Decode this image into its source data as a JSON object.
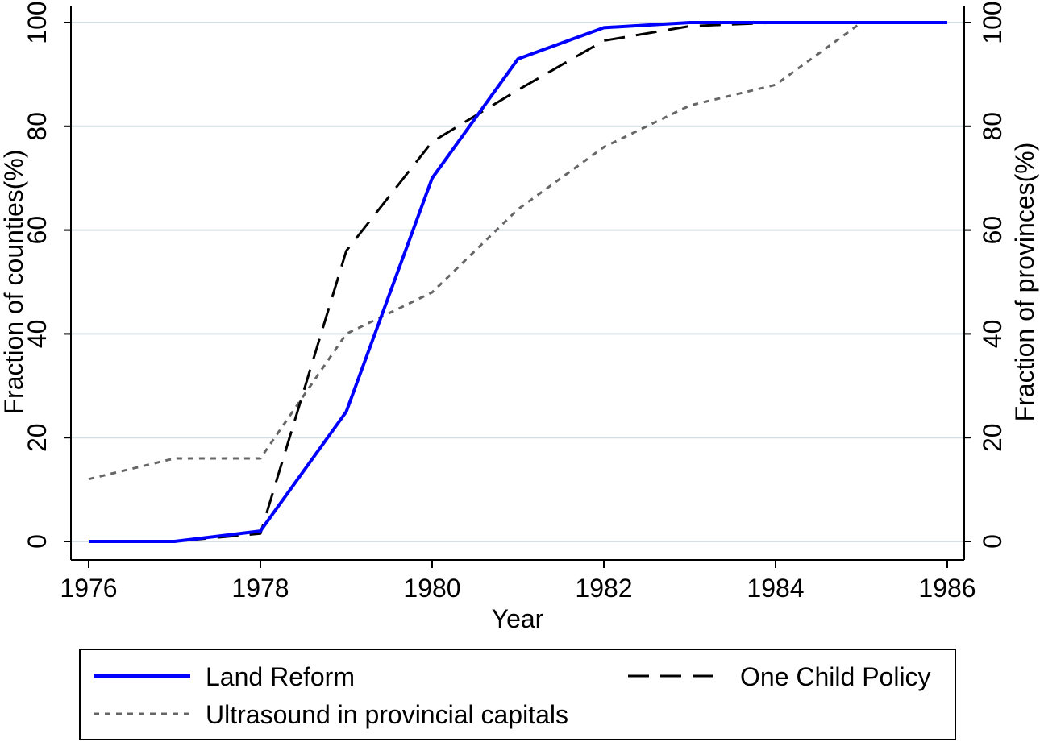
{
  "chart_data": {
    "type": "line",
    "title": "",
    "xlabel": "Year",
    "ylabel_left": "Fraction of counties(%)",
    "ylabel_right": "Fraction of provinces(%)",
    "xlim": [
      1976,
      1986
    ],
    "ylim": [
      0,
      100
    ],
    "x_ticks": [
      "1976",
      "1978",
      "1980",
      "1982",
      "1984",
      "1986"
    ],
    "y_ticks": [
      "0",
      "20",
      "40",
      "60",
      "80",
      "100"
    ],
    "grid": true,
    "legend_position": "bottom",
    "x": [
      1976,
      1977,
      1978,
      1979,
      1980,
      1981,
      1982,
      1983,
      1984,
      1985,
      1986
    ],
    "series": [
      {
        "name": "Land Reform",
        "axis": "left",
        "color": "#0000ff",
        "style": "solid",
        "values": [
          0,
          0,
          2,
          25,
          70,
          93,
          99,
          100,
          100,
          100,
          100
        ]
      },
      {
        "name": "One Child Policy",
        "axis": "right",
        "color": "#000000",
        "style": "dashed",
        "values": [
          0,
          0,
          1.5,
          56,
          77,
          87,
          96.5,
          99.3,
          100,
          100,
          100
        ]
      },
      {
        "name": "Ultrasound in provincial capitals",
        "axis": "right",
        "color": "#666666",
        "style": "dotted",
        "values": [
          12,
          16,
          16,
          40,
          48,
          64,
          76,
          84,
          88,
          100,
          100
        ]
      }
    ]
  }
}
